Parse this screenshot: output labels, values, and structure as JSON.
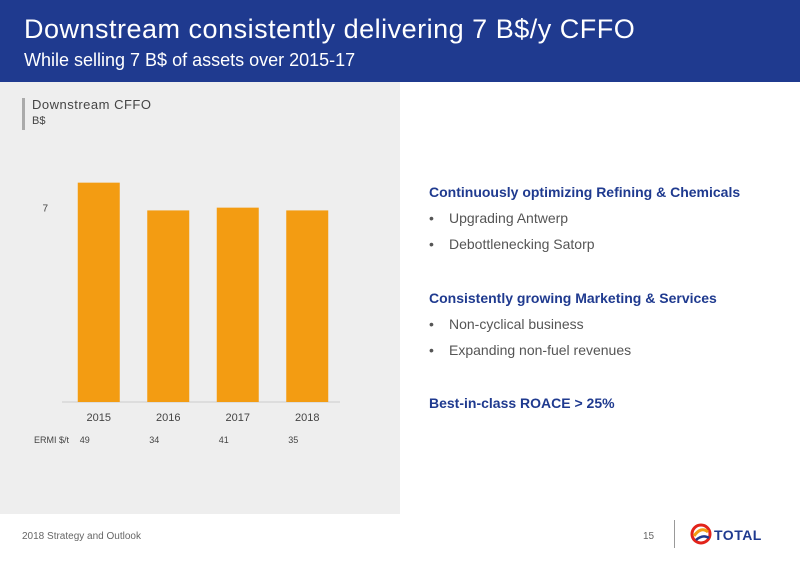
{
  "header": {
    "title": "Downstream consistently delivering 7 B$/y CFFO",
    "subtitle": "While selling 7 B$ of assets over 2015-17"
  },
  "chart_data": {
    "type": "bar",
    "title": "Downstream CFFO",
    "unit": "B$",
    "categories": [
      "2015",
      "2016",
      "2017",
      "2018"
    ],
    "values": [
      7.9,
      6.9,
      7.0,
      6.9
    ],
    "ylim": [
      0,
      8.5
    ],
    "y_ticks": [
      7
    ],
    "bar_color": "#f39c12",
    "grid": false,
    "ermi": {
      "label": "ERMI $/t",
      "values": [
        "49",
        "34",
        "41",
        "35"
      ]
    }
  },
  "right_panel": {
    "section1": {
      "heading": "Continuously optimizing Refining & Chemicals",
      "bullets": [
        "Upgrading Antwerp",
        "Debottlenecking Satorp"
      ]
    },
    "section2": {
      "heading": "Consistently growing Marketing & Services",
      "bullets": [
        "Non-cyclical business",
        "Expanding non-fuel revenues"
      ]
    },
    "section3": {
      "heading": "Best-in-class ROACE > 25%"
    },
    "bullet_char": "•"
  },
  "footer": {
    "text": "2018 Strategy and Outlook",
    "page": "15",
    "logo": "TOTAL"
  }
}
